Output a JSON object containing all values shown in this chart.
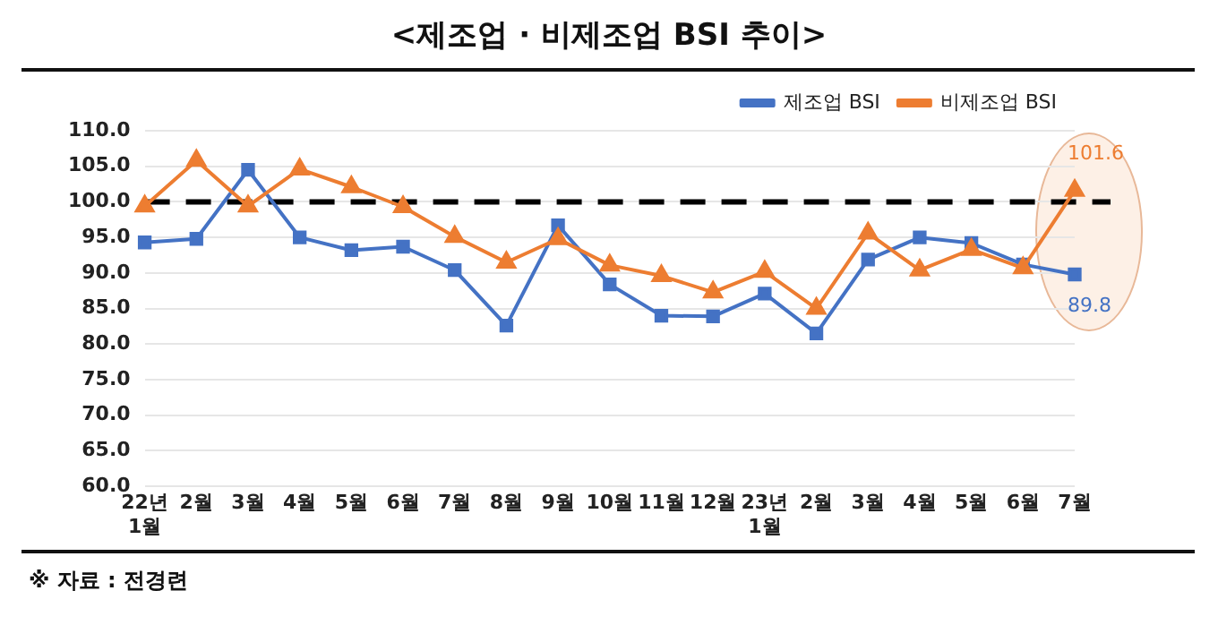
{
  "chart_data": {
    "type": "line",
    "title": "<제조업 · 비제조업 BSI 추이>",
    "categories": [
      "22년 1월",
      "2월",
      "3월",
      "4월",
      "5월",
      "6월",
      "7월",
      "8월",
      "9월",
      "10월",
      "11월",
      "12월",
      "23년 1월",
      "2월",
      "3월",
      "4월",
      "5월",
      "6월",
      "7월"
    ],
    "series": [
      {
        "name": "제조업 BSI",
        "color": "#4472c4",
        "marker": "square",
        "values": [
          94.3,
          94.8,
          104.5,
          95.0,
          93.2,
          93.7,
          90.4,
          82.6,
          96.7,
          88.4,
          84.0,
          83.9,
          87.1,
          81.5,
          91.9,
          95.0,
          94.2,
          91.2,
          89.8
        ],
        "value_labels": [
          null,
          null,
          null,
          null,
          null,
          null,
          null,
          null,
          null,
          null,
          null,
          null,
          null,
          null,
          null,
          null,
          null,
          null,
          "89.8"
        ]
      },
      {
        "name": "비제조업 BSI",
        "color": "#ed7d31",
        "marker": "triangle",
        "values": [
          99.4,
          105.8,
          99.4,
          104.6,
          102.1,
          99.3,
          95.1,
          91.5,
          94.8,
          91.1,
          89.6,
          87.3,
          90.2,
          85.0,
          95.6,
          90.4,
          93.3,
          90.7,
          101.6
        ],
        "value_labels": [
          null,
          null,
          null,
          null,
          null,
          null,
          null,
          null,
          null,
          null,
          null,
          null,
          null,
          null,
          null,
          null,
          null,
          null,
          "101.6"
        ]
      }
    ],
    "ylim": [
      60,
      110
    ],
    "yticks": [
      {
        "value": 60,
        "label": "60.0"
      },
      {
        "value": 65,
        "label": "65.0"
      },
      {
        "value": 70,
        "label": "70.0"
      },
      {
        "value": 75,
        "label": "75.0"
      },
      {
        "value": 80,
        "label": "80.0"
      },
      {
        "value": 85,
        "label": "85.0"
      },
      {
        "value": 90,
        "label": "90.0"
      },
      {
        "value": 95,
        "label": "95.0"
      },
      {
        "value": 100,
        "label": "100.0"
      },
      {
        "value": 105,
        "label": "105.0"
      },
      {
        "value": 110,
        "label": "110.0"
      }
    ],
    "ref_lines": [
      {
        "axis": "y",
        "value": 100,
        "color": "#000000",
        "line_style": "dashed"
      }
    ],
    "grid": "y",
    "legend": "top right",
    "line_style": "solid",
    "annotations": [
      "※ 자료 : 전경련"
    ]
  }
}
